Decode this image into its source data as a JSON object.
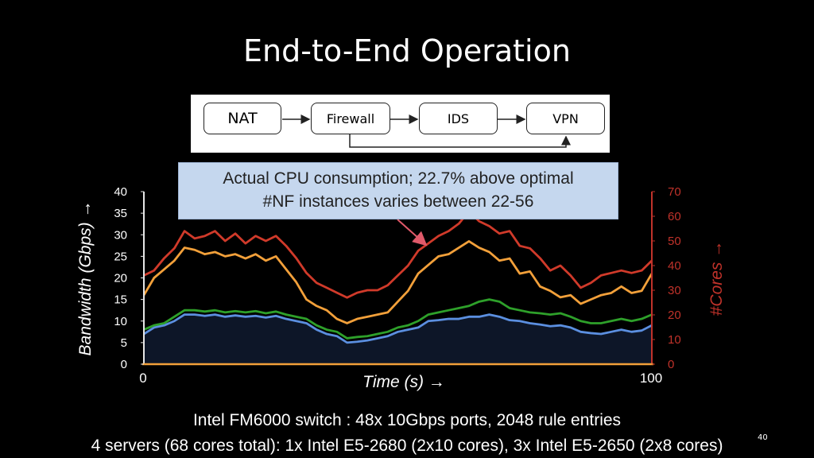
{
  "title": "End-to-End Operation",
  "pipeline": {
    "nodes": [
      "NAT",
      "Firewall",
      "IDS",
      "VPN"
    ],
    "bypass": "Firewall → VPN"
  },
  "callout": {
    "line1": "Actual CPU consumption; 22.7% above optimal",
    "line2": "#NF instances varies between 22-56"
  },
  "chart_data": {
    "type": "line",
    "xlabel": "Time (s) →",
    "ylabel_left": "Bandwidth (Gbps) →",
    "ylabel_right": "#Cores →",
    "x_ticks": [
      "0",
      "100"
    ],
    "xlim": [
      0,
      100
    ],
    "ylim_left": [
      0,
      40
    ],
    "ylim_right": [
      0,
      70
    ],
    "y_ticks_left": [
      "0",
      "5",
      "10",
      "15",
      "20",
      "25",
      "30",
      "35",
      "40"
    ],
    "y_ticks_right": [
      "0",
      "10",
      "20",
      "30",
      "40",
      "50",
      "60",
      "70"
    ],
    "colors": {
      "blue": "#5b8fe0",
      "green": "#2ea02a",
      "orange": "#f2a03a",
      "red": "#d03a2a",
      "right_axis": "#c0322a",
      "area_fill": "#0d1628"
    },
    "series": [
      {
        "axis": "left",
        "color": "blue",
        "x": [
          0,
          2,
          4,
          6,
          8,
          10,
          12,
          14,
          16,
          18,
          20,
          22,
          24,
          26,
          28,
          30,
          32,
          34,
          36,
          38,
          40,
          42,
          44,
          46,
          48,
          50,
          52,
          54,
          56,
          58,
          60,
          62,
          64,
          66,
          68,
          70,
          72,
          74,
          76,
          78,
          80,
          82,
          84,
          86,
          88,
          90,
          92,
          94,
          96,
          98,
          100
        ],
        "y": [
          7,
          8.5,
          9,
          10,
          11.5,
          11.5,
          11.2,
          11.5,
          11,
          11.3,
          11,
          11.2,
          10.8,
          11.2,
          10.5,
          10,
          9.5,
          8,
          7,
          6.5,
          5,
          5.2,
          5.5,
          6,
          6.5,
          7.5,
          8,
          8.5,
          10,
          10.2,
          10.5,
          10.5,
          11,
          11,
          11.5,
          11,
          10.2,
          10,
          9.5,
          9.2,
          8.8,
          9,
          8.5,
          7.5,
          7.2,
          7,
          7.5,
          8,
          7.5,
          7.8,
          9
        ]
      },
      {
        "axis": "left",
        "color": "green",
        "x": [
          0,
          2,
          4,
          6,
          8,
          10,
          12,
          14,
          16,
          18,
          20,
          22,
          24,
          26,
          28,
          30,
          32,
          34,
          36,
          38,
          40,
          42,
          44,
          46,
          48,
          50,
          52,
          54,
          56,
          58,
          60,
          62,
          64,
          66,
          68,
          70,
          72,
          74,
          76,
          78,
          80,
          82,
          84,
          86,
          88,
          90,
          92,
          94,
          96,
          98,
          100
        ],
        "y": [
          8,
          9,
          9.5,
          11,
          12.5,
          12.5,
          12.2,
          12.5,
          12,
          12.3,
          12,
          12.3,
          11.8,
          12.2,
          11.5,
          11,
          10.5,
          9,
          8,
          7.5,
          6,
          6.3,
          6.5,
          7,
          7.5,
          8.5,
          9,
          10,
          11.5,
          12,
          12.5,
          13,
          13.5,
          14.5,
          15,
          14.5,
          13,
          12.5,
          12,
          11.8,
          11.5,
          11.8,
          11,
          10,
          9.5,
          9.5,
          10,
          10.5,
          10,
          10.5,
          11.5
        ]
      },
      {
        "axis": "left",
        "color": "orange",
        "x": [
          0,
          2,
          4,
          6,
          8,
          10,
          12,
          14,
          16,
          18,
          20,
          22,
          24,
          26,
          28,
          30,
          32,
          34,
          36,
          38,
          40,
          42,
          44,
          46,
          48,
          50,
          52,
          54,
          56,
          58,
          60,
          62,
          64,
          66,
          68,
          70,
          72,
          74,
          76,
          78,
          80,
          82,
          84,
          86,
          88,
          90,
          92,
          94,
          96,
          98,
          100
        ],
        "y": [
          16,
          20,
          22,
          24,
          27,
          26.5,
          25.5,
          26,
          25,
          25.5,
          24.5,
          25.5,
          24,
          25,
          22,
          19,
          15,
          13.5,
          12.5,
          10.5,
          9.5,
          10.5,
          11,
          11.5,
          12,
          14.5,
          17,
          21,
          23,
          25,
          25.5,
          27,
          28.5,
          27,
          26,
          24,
          24.5,
          21,
          21.5,
          18,
          17,
          15.5,
          16,
          14,
          15,
          16,
          16.5,
          18,
          16.5,
          17,
          21
        ]
      },
      {
        "axis": "right",
        "color": "red",
        "x": [
          0,
          2,
          4,
          6,
          8,
          10,
          12,
          14,
          16,
          18,
          20,
          22,
          24,
          26,
          28,
          30,
          32,
          34,
          36,
          38,
          40,
          42,
          44,
          46,
          48,
          50,
          52,
          54,
          56,
          58,
          60,
          62,
          64,
          66,
          68,
          70,
          72,
          74,
          76,
          78,
          80,
          82,
          84,
          86,
          88,
          90,
          92,
          94,
          96,
          98,
          100
        ],
        "y": [
          36,
          38,
          43,
          47,
          54,
          51,
          52,
          54,
          50,
          53,
          49,
          52,
          50,
          52,
          48,
          43,
          37,
          33,
          31,
          29,
          27,
          29,
          30,
          30,
          32,
          36,
          40,
          46,
          49,
          52,
          54,
          57,
          62,
          58,
          56,
          53,
          54,
          48,
          47,
          43,
          38,
          40,
          36,
          31,
          33,
          36,
          37,
          38,
          37,
          38,
          42
        ]
      }
    ]
  },
  "footer": {
    "line1": "Intel FM6000 switch : 48x 10Gbps ports, 2048 rule entries",
    "line2": "4 servers  (68 cores total): 1x Intel E5-2680 (2x10 cores), 3x Intel E5-2650 (2x8 cores)"
  },
  "page_number": "40"
}
